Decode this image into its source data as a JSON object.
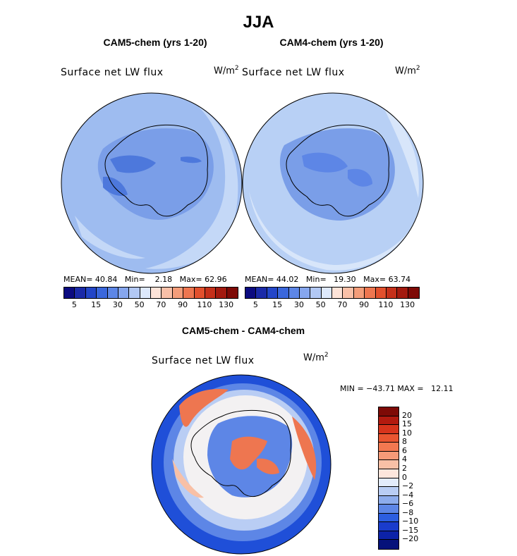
{
  "title": "JJA",
  "panels": [
    {
      "title": "CAM5-chem (yrs 1-20)",
      "variable": "Surface net LW flux",
      "units_base": "W/m",
      "units_exp": "2",
      "stats": {
        "mean_label": "MEAN=",
        "mean": "40.84",
        "min_label": "Min=",
        "min": "2.18",
        "max_label": "Max=",
        "max": "62.96"
      },
      "colorbar": {
        "tick_labels": [
          "5",
          "15",
          "30",
          "50",
          "70",
          "90",
          "110",
          "130"
        ],
        "colors": [
          "#0b0b80",
          "#1a2aa8",
          "#2346c8",
          "#3a67dc",
          "#5d86e6",
          "#86a6ee",
          "#b2c8f4",
          "#dde8fb",
          "#fde3d8",
          "#f9c0a8",
          "#f49d7a",
          "#ee7650",
          "#e2502d",
          "#c5301a",
          "#a31a0f",
          "#7e0a06"
        ]
      },
      "field_colors": {
        "background": "#9ebcf0",
        "ocean_ring": "#c4d8f7",
        "interior": "#7a9ee8",
        "deep": "#4d78dc"
      }
    },
    {
      "title": "CAM4-chem (yrs 1-20)",
      "variable": "Surface net LW flux",
      "units_base": "W/m",
      "units_exp": "2",
      "stats": {
        "mean_label": "MEAN=",
        "mean": "44.02",
        "min_label": "Min=",
        "min": "19.30",
        "max_label": "Max=",
        "max": "63.74"
      },
      "colorbar": {
        "tick_labels": [
          "5",
          "15",
          "30",
          "50",
          "70",
          "90",
          "110",
          "130"
        ],
        "colors": [
          "#0b0b80",
          "#1a2aa8",
          "#2346c8",
          "#3a67dc",
          "#5d86e6",
          "#86a6ee",
          "#b2c8f4",
          "#dde8fb",
          "#fde3d8",
          "#f9c0a8",
          "#f49d7a",
          "#ee7650",
          "#e2502d",
          "#c5301a",
          "#a31a0f",
          "#7e0a06"
        ]
      },
      "field_colors": {
        "background": "#b8d0f5",
        "ocean_ring": "#d8e6fa",
        "interior": "#7a9ee8",
        "deep": "#5d86e6"
      }
    }
  ],
  "difference": {
    "title": "CAM5-chem - CAM4-chem",
    "variable": "Surface net LW flux",
    "units_base": "W/m",
    "units_exp": "2",
    "minmax_text": "MIN = −43.71 MAX =   12.11",
    "colorbar": {
      "labels": [
        "20",
        "15",
        "10",
        "8",
        "6",
        "4",
        "2",
        "0",
        "−2",
        "−4",
        "−6",
        "−8",
        "−10",
        "−15",
        "−20"
      ],
      "colors": [
        "#7e0a06",
        "#b21a0f",
        "#d7341c",
        "#e95530",
        "#f27850",
        "#f59a78",
        "#f8c0a6",
        "#fde6dc",
        "#e3ecfb",
        "#b9cdf4",
        "#8dacec",
        "#5d86e6",
        "#2c5ee0",
        "#1a3ccc",
        "#0c22a8",
        "#06127a"
      ]
    },
    "field_colors": {
      "outer": "#1f4fd8",
      "mid": "#5d86e6",
      "light": "#b9cdf4",
      "white": "#f3f1f2",
      "red": "#ee7650",
      "pink": "#f8c0a6"
    }
  },
  "land_outline_color": "#000000"
}
